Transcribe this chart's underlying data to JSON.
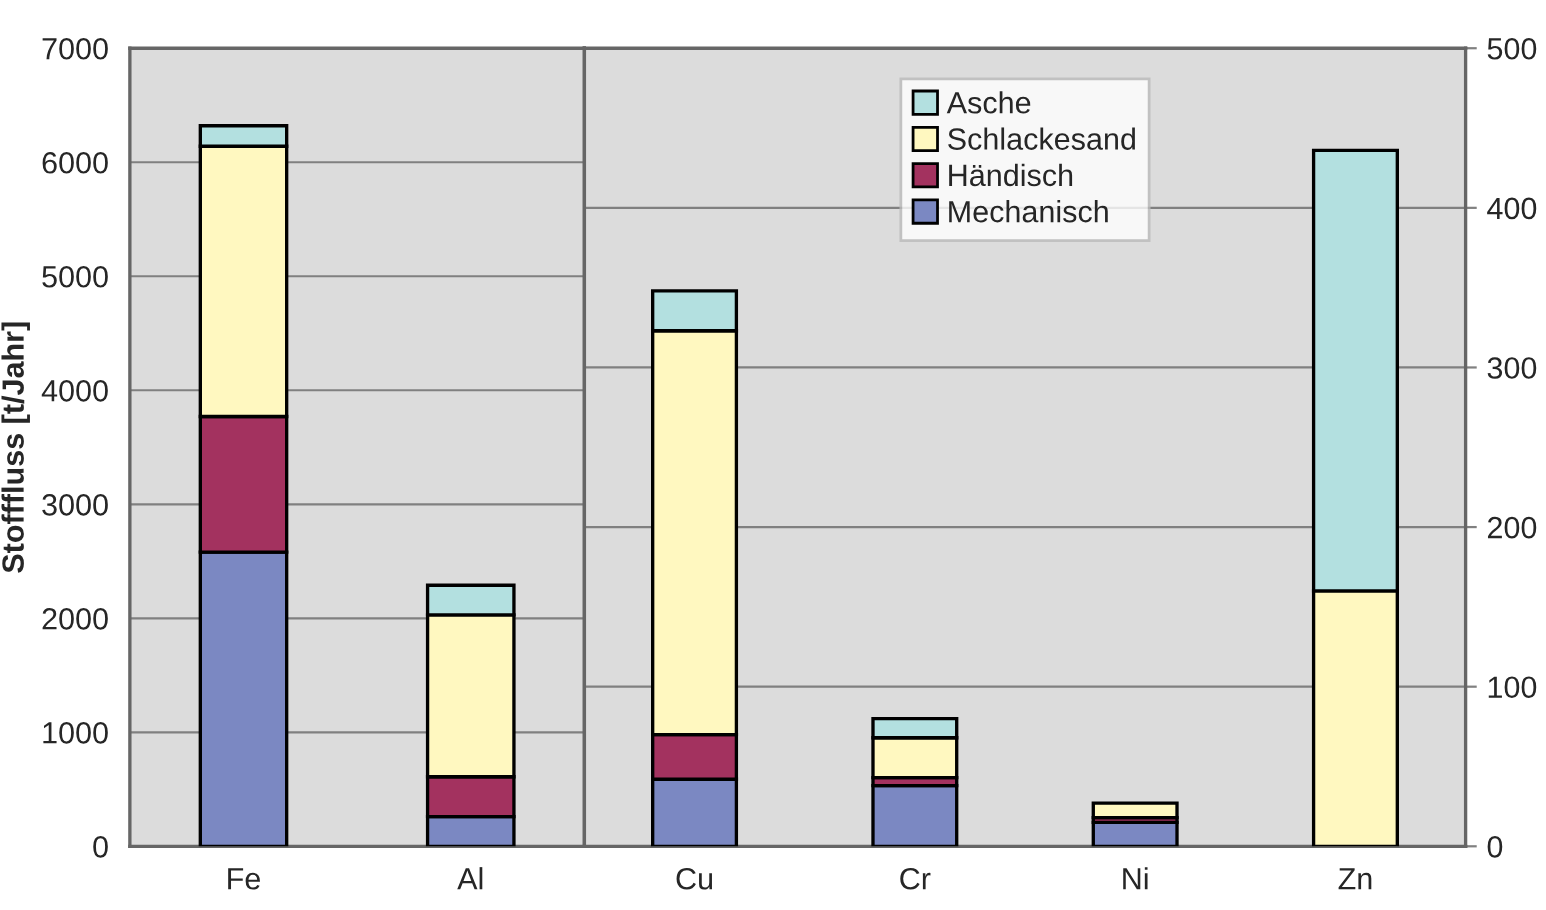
{
  "chart_data": [
    {
      "type": "bar",
      "stacked": true,
      "categories": [
        "Fe",
        "Al"
      ],
      "ylabel": "Stofffluss [t/Jahr]",
      "ylim": [
        0,
        7000
      ],
      "yticks": [
        0,
        1000,
        2000,
        3000,
        4000,
        5000,
        6000,
        7000
      ],
      "grid": "y",
      "series": [
        {
          "color": "#7b88c2",
          "values": [
            2580,
            260
          ]
        },
        {
          "color": "#a3325f",
          "values": [
            1190,
            350
          ]
        },
        {
          "color": "#fff8c0",
          "values": [
            2370,
            1420
          ]
        },
        {
          "color": "#b3e0e0",
          "values": [
            180,
            260
          ]
        }
      ]
    },
    {
      "type": "bar",
      "stacked": true,
      "categories": [
        "Cu",
        "Cr",
        "Ni",
        "Zn"
      ],
      "y2lim": [
        0,
        500
      ],
      "y2ticks": [
        0,
        100,
        200,
        300,
        400,
        500
      ],
      "grid": "y",
      "legend": "top",
      "series": [
        {
          "name": "Mechanisch",
          "color": "#7b88c2",
          "axis": "y2",
          "values": [
            42,
            38,
            15,
            null
          ]
        },
        {
          "name": "Händisch",
          "color": "#a3325f",
          "axis": "y2",
          "values": [
            28,
            5,
            3,
            null
          ]
        },
        {
          "name": "Schlackesand",
          "color": "#fff8c0",
          "axis": "y2",
          "values": [
            253,
            25,
            9,
            160
          ]
        },
        {
          "name": "Asche",
          "color": "#b3e0e0",
          "axis": "y2",
          "values": [
            25,
            12,
            null,
            276
          ]
        }
      ]
    }
  ]
}
